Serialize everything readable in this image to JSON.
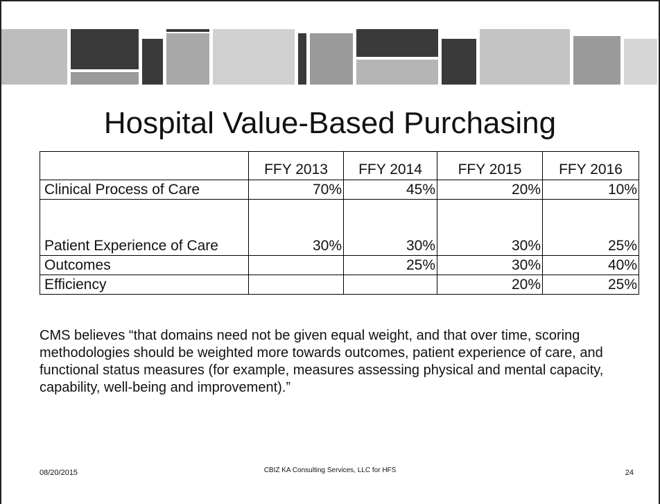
{
  "header": {
    "title": "Hospital Value-Based Purchasing"
  },
  "table": {
    "columns": [
      null,
      "FFY 2013",
      "FFY 2014",
      "FFY 2015",
      "FFY 2016"
    ],
    "rows": [
      [
        "Clinical Process of Care",
        "70%",
        "45%",
        "20%",
        "10%"
      ],
      [
        "Patient Experience of Care",
        "30%",
        "30%",
        "30%",
        "25%"
      ],
      [
        "Outcomes",
        null,
        "25%",
        "30%",
        "40%"
      ],
      [
        "Efficiency",
        null,
        null,
        "20%",
        "25%"
      ]
    ]
  },
  "body": {
    "text": "CMS  believes “that domains need not be given equal weight, and that over time, scoring methodologies should be weighted more towards outcomes, patient experience of care, and functional status measures (for example, measures assessing physical and mental capacity, capability, well-being and improvement).”"
  },
  "footer": {
    "date": "08/20/2015",
    "source": "CBIZ KA Consulting Services, LLC for HFS",
    "page": "24"
  }
}
